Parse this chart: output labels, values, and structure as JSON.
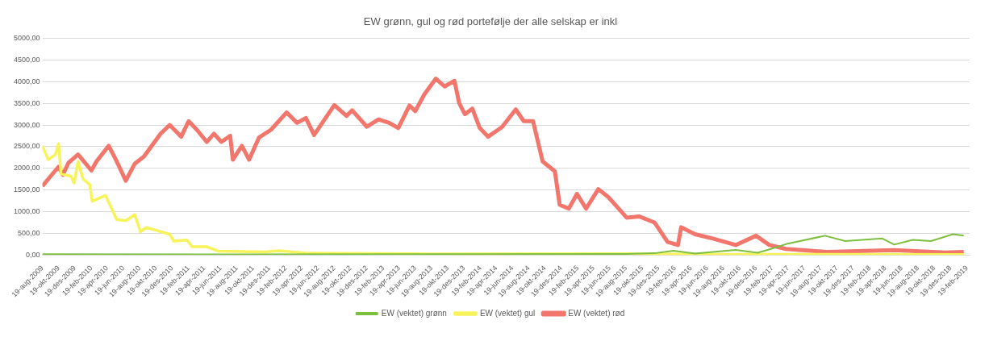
{
  "chart_data": {
    "type": "line",
    "title": "EW grønn, gul og rød portefølje der alle selskap er inkl",
    "xlim": [
      "2009-08-19",
      "2019-03-01"
    ],
    "xticks": [
      {
        "value": "2009-08-19",
        "label": "19-aug-2009"
      },
      {
        "value": "2009-10-19",
        "label": "19-okt-2009"
      },
      {
        "value": "2009-12-19",
        "label": "19-des-2009"
      },
      {
        "value": "2010-02-19",
        "label": "19-feb-2010"
      },
      {
        "value": "2010-04-19",
        "label": "19-apr-2010"
      },
      {
        "value": "2010-06-19",
        "label": "19-jun-2010"
      },
      {
        "value": "2010-08-19",
        "label": "19-aug-2010"
      },
      {
        "value": "2010-10-19",
        "label": "19-okt-2010"
      },
      {
        "value": "2010-12-19",
        "label": "19-des-2010"
      },
      {
        "value": "2011-02-19",
        "label": "19-feb-2011"
      },
      {
        "value": "2011-04-19",
        "label": "19-apr-2011"
      },
      {
        "value": "2011-06-19",
        "label": "19-jun-2011"
      },
      {
        "value": "2011-08-19",
        "label": "19-aug-2011"
      },
      {
        "value": "2011-10-19",
        "label": "19-okt-2011"
      },
      {
        "value": "2011-12-19",
        "label": "19-des-2011"
      },
      {
        "value": "2012-02-19",
        "label": "19-feb-2012"
      },
      {
        "value": "2012-04-19",
        "label": "19-apr-2012"
      },
      {
        "value": "2012-06-19",
        "label": "19-jun-2012"
      },
      {
        "value": "2012-08-19",
        "label": "19-aug-2012"
      },
      {
        "value": "2012-10-19",
        "label": "19-okt-2012"
      },
      {
        "value": "2012-12-19",
        "label": "19-des-2012"
      },
      {
        "value": "2013-02-19",
        "label": "19-feb-2013"
      },
      {
        "value": "2013-04-19",
        "label": "19-apr-2013"
      },
      {
        "value": "2013-06-19",
        "label": "19-jun-2013"
      },
      {
        "value": "2013-08-19",
        "label": "19-aug-2013"
      },
      {
        "value": "2013-10-19",
        "label": "19-okt-2013"
      },
      {
        "value": "2013-12-19",
        "label": "19-des-2013"
      },
      {
        "value": "2014-02-19",
        "label": "19-feb-2014"
      },
      {
        "value": "2014-04-19",
        "label": "19-apr-2014"
      },
      {
        "value": "2014-06-19",
        "label": "19-jun-2014"
      },
      {
        "value": "2014-08-19",
        "label": "19-aug-2014"
      },
      {
        "value": "2014-10-19",
        "label": "19-okt-2014"
      },
      {
        "value": "2014-12-19",
        "label": "19-des-2014"
      },
      {
        "value": "2015-02-19",
        "label": "19-feb-2015"
      },
      {
        "value": "2015-04-19",
        "label": "19-apr-2015"
      },
      {
        "value": "2015-06-19",
        "label": "19-jun-2015"
      },
      {
        "value": "2015-08-19",
        "label": "19-aug-2015"
      },
      {
        "value": "2015-10-19",
        "label": "19-okt-2015"
      },
      {
        "value": "2015-12-19",
        "label": "19-des-2015"
      },
      {
        "value": "2016-02-19",
        "label": "19-feb-2016"
      },
      {
        "value": "2016-04-19",
        "label": "19-apr-2016"
      },
      {
        "value": "2016-06-19",
        "label": "19-jun-2016"
      },
      {
        "value": "2016-08-19",
        "label": "19-aug-2016"
      },
      {
        "value": "2016-10-19",
        "label": "19-okt-2016"
      },
      {
        "value": "2016-12-19",
        "label": "19-des-2016"
      },
      {
        "value": "2017-02-19",
        "label": "19-feb-2017"
      },
      {
        "value": "2017-04-19",
        "label": "19-apr-2017"
      },
      {
        "value": "2017-06-19",
        "label": "19-jun-2017"
      },
      {
        "value": "2017-08-19",
        "label": "19-aug-2017"
      },
      {
        "value": "2017-10-19",
        "label": "19-okt-2017"
      },
      {
        "value": "2017-12-19",
        "label": "19-des-2017"
      },
      {
        "value": "2018-02-19",
        "label": "19-feb-2018"
      },
      {
        "value": "2018-04-19",
        "label": "19-apr-2018"
      },
      {
        "value": "2018-06-19",
        "label": "19-jun-2018"
      },
      {
        "value": "2018-08-19",
        "label": "19-aug-2018"
      },
      {
        "value": "2018-10-19",
        "label": "19-okt-2018"
      },
      {
        "value": "2018-12-19",
        "label": "19-des-2018"
      },
      {
        "value": "2019-02-19",
        "label": "19-feb-2019"
      }
    ],
    "ylim": [
      0,
      5000
    ],
    "yticks": [
      {
        "value": 0,
        "label": "0,00"
      },
      {
        "value": 500,
        "label": "500,00"
      },
      {
        "value": 1000,
        "label": "1000,00"
      },
      {
        "value": 1500,
        "label": "1500,00"
      },
      {
        "value": 2000,
        "label": "2000,00"
      },
      {
        "value": 2500,
        "label": "2500,00"
      },
      {
        "value": 3000,
        "label": "3000,00"
      },
      {
        "value": 3500,
        "label": "3500,00"
      },
      {
        "value": 4000,
        "label": "4000,00"
      },
      {
        "value": 4500,
        "label": "4500,00"
      },
      {
        "value": 5000,
        "label": "5000,00"
      }
    ],
    "grid": "y",
    "legend": "bottom",
    "marker": "none",
    "line_style": "solid",
    "series": [
      {
        "name": "EW (vektet) grønn",
        "color": "#7dbf3f",
        "x": [
          "2009-08-19",
          "2011-08-19",
          "2013-08-19",
          "2015-08-19",
          "2015-12-04",
          "2016-02-13",
          "2016-05-04",
          "2016-10-04",
          "2016-12-25",
          "2017-02-13",
          "2017-04-10",
          "2017-09-04",
          "2017-11-19",
          "2018-04-07",
          "2018-05-22",
          "2018-07-31",
          "2018-10-07",
          "2018-12-28",
          "2019-02-07"
        ],
        "values": [
          20,
          15,
          20,
          25,
          40,
          100,
          35,
          115,
          50,
          140,
          250,
          445,
          320,
          380,
          240,
          350,
          320,
          480,
          445
        ]
      },
      {
        "name": "EW (vektet) gul",
        "color": "#f7f35a",
        "x": [
          "2009-08-19",
          "2009-09-10",
          "2009-10-07",
          "2009-10-19",
          "2009-10-28",
          "2009-12-04",
          "2009-12-16",
          "2009-12-31",
          "2010-01-19",
          "2010-02-13",
          "2010-02-22",
          "2010-04-13",
          "2010-05-25",
          "2010-06-28",
          "2010-08-01",
          "2010-08-22",
          "2010-09-13",
          "2010-12-10",
          "2010-12-25",
          "2011-02-13",
          "2011-03-04",
          "2011-04-28",
          "2011-06-10",
          "2011-12-04",
          "2012-01-25",
          "2012-05-13",
          "2013-08-19",
          "2015-08-19",
          "2016-06-19",
          "2019-02-07"
        ],
        "values": [
          2520,
          2200,
          2320,
          2570,
          1875,
          1820,
          1660,
          2160,
          1750,
          1625,
          1240,
          1375,
          820,
          790,
          930,
          535,
          635,
          480,
          320,
          345,
          190,
          190,
          90,
          70,
          100,
          40,
          25,
          30,
          15,
          10
        ]
      },
      {
        "name": "EW (vektet) rød",
        "color": "#f2766b",
        "x": [
          "2009-08-19",
          "2009-09-19",
          "2009-10-19",
          "2009-11-04",
          "2009-11-25",
          "2009-12-31",
          "2010-02-19",
          "2010-03-10",
          "2010-04-25",
          "2010-05-22",
          "2010-06-28",
          "2010-08-01",
          "2010-09-04",
          "2010-11-06",
          "2010-12-10",
          "2011-01-22",
          "2011-02-19",
          "2011-03-22",
          "2011-04-28",
          "2011-05-25",
          "2011-06-22",
          "2011-07-25",
          "2011-08-04",
          "2011-09-07",
          "2011-10-04",
          "2011-11-10",
          "2011-12-25",
          "2012-02-22",
          "2012-04-01",
          "2012-05-04",
          "2012-06-04",
          "2012-08-19",
          "2012-10-04",
          "2012-10-25",
          "2012-12-19",
          "2013-02-01",
          "2013-03-13",
          "2013-04-16",
          "2013-05-28",
          "2013-06-19",
          "2013-07-22",
          "2013-09-04",
          "2013-10-07",
          "2013-11-13",
          "2013-12-01",
          "2013-12-22",
          "2014-01-19",
          "2014-02-16",
          "2014-03-19",
          "2014-05-10",
          "2014-07-01",
          "2014-07-31",
          "2014-09-04",
          "2014-10-10",
          "2014-11-25",
          "2014-12-13",
          "2015-01-16",
          "2015-02-16",
          "2015-03-22",
          "2015-05-07",
          "2015-06-13",
          "2015-08-22",
          "2015-10-07",
          "2015-12-04",
          "2016-01-22",
          "2016-03-01",
          "2016-03-13",
          "2016-05-04",
          "2016-07-13",
          "2016-10-04",
          "2016-12-19",
          "2017-02-07",
          "2017-04-10",
          "2017-09-10",
          "2018-05-22",
          "2018-11-28",
          "2019-02-07"
        ],
        "values": [
          1590,
          1820,
          2035,
          1850,
          2130,
          2320,
          1950,
          2160,
          2520,
          2200,
          1715,
          2110,
          2270,
          2800,
          3000,
          2730,
          3090,
          2890,
          2610,
          2800,
          2610,
          2750,
          2200,
          2520,
          2200,
          2710,
          2890,
          3290,
          3050,
          3160,
          2770,
          3460,
          3210,
          3340,
          2960,
          3130,
          3050,
          2930,
          3450,
          3320,
          3700,
          4070,
          3890,
          4020,
          3500,
          3250,
          3380,
          2930,
          2730,
          2950,
          3360,
          3090,
          3090,
          2160,
          1930,
          1160,
          1070,
          1410,
          1070,
          1520,
          1340,
          860,
          890,
          750,
          300,
          230,
          640,
          480,
          375,
          230,
          445,
          230,
          140,
          70,
          110,
          55,
          70
        ]
      }
    ]
  }
}
